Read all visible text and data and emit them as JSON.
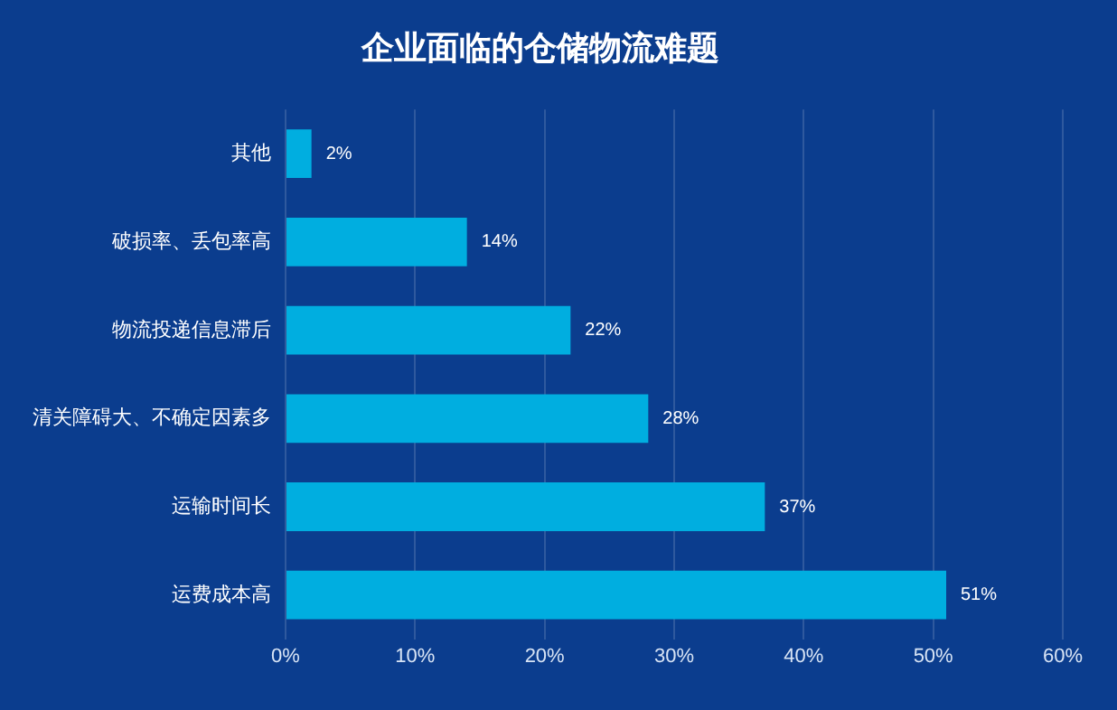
{
  "chart_data": {
    "type": "bar",
    "orientation": "horizontal",
    "title": "企业面临的仓储物流难题",
    "categories": [
      "其他",
      "破损率、丢包率高",
      "物流投递信息滞后",
      "清关障碍大、不确定因素多",
      "运输时间长",
      "运费成本高"
    ],
    "values": [
      2,
      14,
      22,
      28,
      37,
      51
    ],
    "value_labels": [
      "2%",
      "14%",
      "22%",
      "28%",
      "37%",
      "51%"
    ],
    "color": "#00aee0",
    "xlim": [
      0,
      60
    ],
    "xticks": [
      {
        "value": 0,
        "label": "0%"
      },
      {
        "value": 10,
        "label": "10%"
      },
      {
        "value": 20,
        "label": "20%"
      },
      {
        "value": 30,
        "label": "30%"
      },
      {
        "value": 40,
        "label": "40%"
      },
      {
        "value": 50,
        "label": "50%"
      },
      {
        "value": 60,
        "label": "60%"
      }
    ],
    "grid": "x",
    "legend": false
  }
}
